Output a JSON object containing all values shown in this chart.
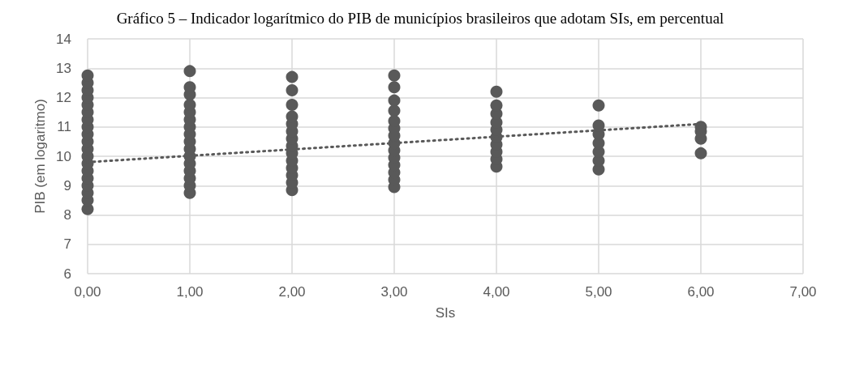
{
  "chart_data": {
    "type": "scatter",
    "title": "Gráfico 5 – Indicador logarítmico do PIB de municípios brasileiros que adotam SIs, em percentual",
    "xlabel": "SIs",
    "ylabel": "PIB (em logaritmo)",
    "xlim": [
      0,
      7
    ],
    "xticks": [
      {
        "value": 0,
        "label": "0,00"
      },
      {
        "value": 1,
        "label": "1,00"
      },
      {
        "value": 2,
        "label": "2,00"
      },
      {
        "value": 3,
        "label": "3,00"
      },
      {
        "value": 4,
        "label": "4,00"
      },
      {
        "value": 5,
        "label": "5,00"
      },
      {
        "value": 6,
        "label": "6,00"
      },
      {
        "value": 7,
        "label": "7,00"
      }
    ],
    "ylim": [
      6,
      14
    ],
    "yticks": [
      6,
      7,
      8,
      9,
      10,
      11,
      12,
      13,
      14
    ],
    "grid": true,
    "series": [
      {
        "color": "#595959",
        "marker": "circle",
        "x": [
          0,
          0,
          0,
          0,
          0,
          0,
          0,
          0,
          0,
          0,
          0,
          0,
          0,
          0,
          0,
          0,
          0,
          0,
          0,
          1,
          1,
          1,
          1,
          1,
          1,
          1,
          1,
          1,
          1,
          1,
          1,
          1,
          1,
          1,
          1,
          2,
          2,
          2,
          2,
          2,
          2,
          2,
          2,
          2,
          2,
          2,
          2,
          2,
          2,
          3,
          3,
          3,
          3,
          3,
          3,
          3,
          3,
          3,
          3,
          3,
          3,
          3,
          3,
          4,
          4,
          4,
          4,
          4,
          4,
          4,
          4,
          4,
          4,
          5,
          5,
          5,
          5,
          5,
          5,
          5,
          6,
          6,
          6,
          6
        ],
        "values": [
          8.2,
          8.5,
          8.75,
          9,
          9.25,
          9.5,
          9.75,
          10,
          10.25,
          10.5,
          10.75,
          11,
          11.25,
          11.5,
          11.75,
          12,
          12.25,
          12.5,
          12.75,
          8.75,
          9,
          9.25,
          9.5,
          9.75,
          10,
          10.25,
          10.5,
          10.75,
          11,
          11.25,
          11.5,
          11.75,
          12.1,
          12.35,
          12.9,
          8.85,
          9.1,
          9.35,
          9.6,
          9.85,
          10.1,
          10.35,
          10.6,
          10.85,
          11.1,
          11.35,
          11.75,
          12.25,
          12.7,
          8.95,
          9.2,
          9.45,
          9.7,
          9.95,
          10.2,
          10.45,
          10.7,
          10.95,
          11.2,
          11.55,
          11.9,
          12.35,
          12.75,
          9.65,
          9.9,
          10.15,
          10.4,
          10.65,
          10.9,
          11.15,
          11.45,
          11.73,
          12.2,
          9.55,
          9.85,
          10.15,
          10.45,
          10.75,
          11.05,
          11.73,
          10.1,
          10.6,
          10.85,
          11.0
        ]
      },
      {
        "type": "line",
        "color": "#595959",
        "line_style": "dotted",
        "x": [
          0,
          6
        ],
        "values": [
          9.8,
          11.1
        ]
      }
    ]
  }
}
